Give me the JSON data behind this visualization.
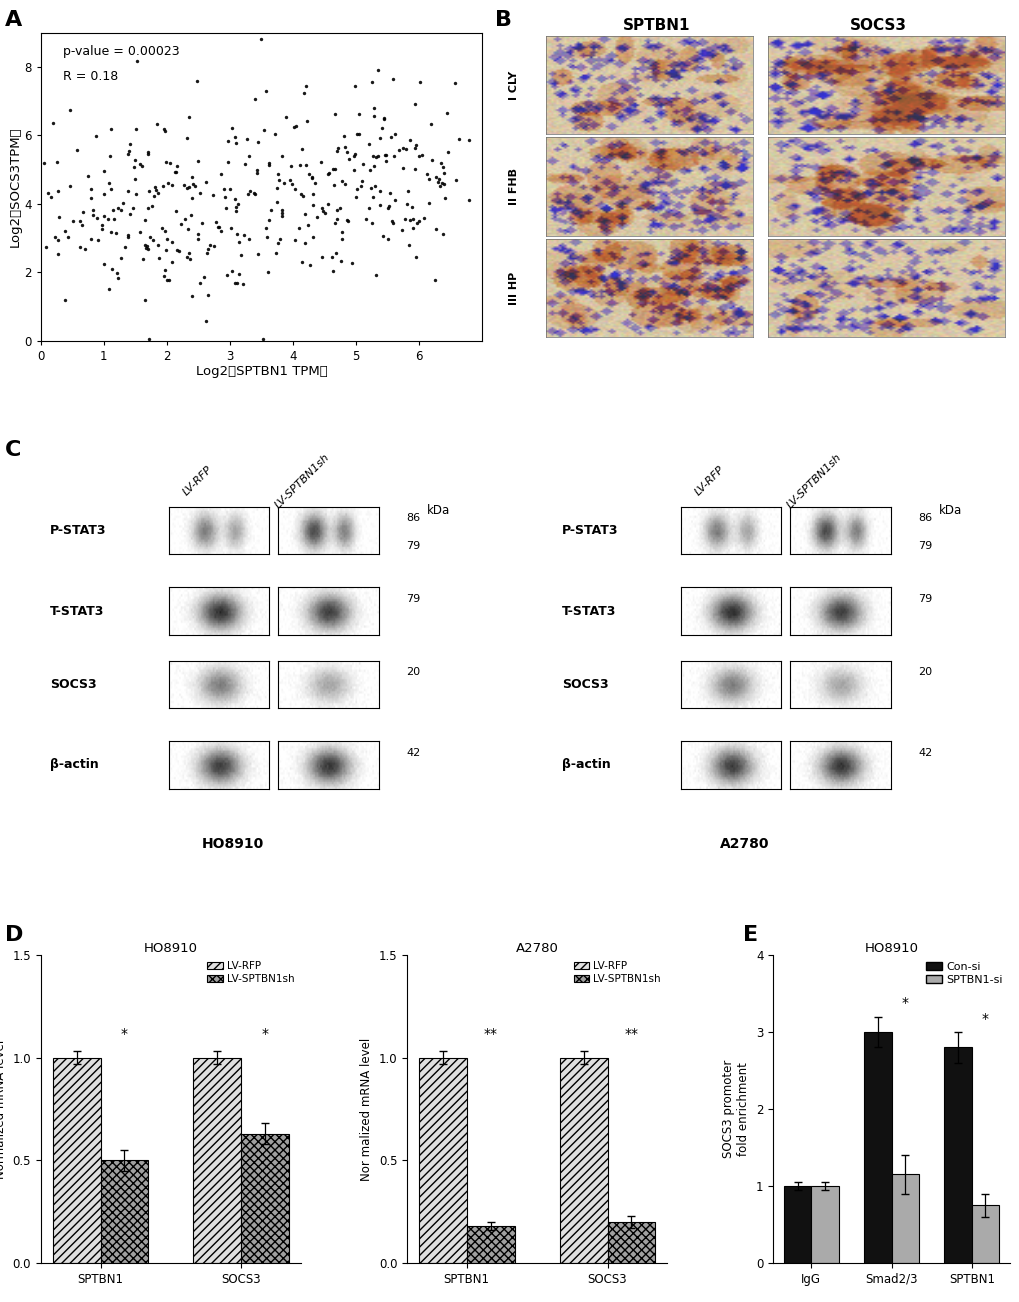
{
  "panel_A": {
    "pvalue_text": "p-value = 0.00023",
    "R_text": "R = 0.18",
    "xlabel": "Log2（SPTBN1 TPM）",
    "ylabel": "Log2（SOCS3TPM）",
    "xlim": [
      0,
      7
    ],
    "ylim": [
      0,
      9
    ],
    "xticks": [
      0,
      1,
      2,
      3,
      4,
      5,
      6
    ],
    "yticks": [
      0,
      2,
      4,
      6,
      8
    ],
    "dot_color": "#000000",
    "dot_size": 6
  },
  "panel_D_HO8910": {
    "categories": [
      "SPTBN1",
      "SOCS3"
    ],
    "LV_RFP_values": [
      1.0,
      1.0
    ],
    "LV_SPTBN1sh_values": [
      0.5,
      0.63
    ],
    "LV_RFP_errors": [
      0.03,
      0.03
    ],
    "LV_SPTBN1sh_errors": [
      0.05,
      0.05
    ],
    "ylabel": "Normalized mRNA level",
    "ylim": [
      0,
      1.5
    ],
    "yticks": [
      0.0,
      0.5,
      1.0,
      1.5
    ],
    "title": "HO8910",
    "sig_labels": [
      "*",
      "*"
    ]
  },
  "panel_D_A2780": {
    "categories": [
      "SPTBN1",
      "SOCS3"
    ],
    "LV_RFP_values": [
      1.0,
      1.0
    ],
    "LV_SPTBN1sh_values": [
      0.18,
      0.2
    ],
    "LV_RFP_errors": [
      0.03,
      0.03
    ],
    "LV_SPTBN1sh_errors": [
      0.02,
      0.03
    ],
    "ylabel": "Nor malized mRNA level",
    "ylim": [
      0,
      1.5
    ],
    "yticks": [
      0.0,
      0.5,
      1.0,
      1.5
    ],
    "title": "A2780",
    "sig_labels": [
      "**",
      "**"
    ]
  },
  "panel_E": {
    "title": "HO8910",
    "categories": [
      "IgG",
      "Smad2/3",
      "SPTBN1"
    ],
    "Con_si_values": [
      1.0,
      3.0,
      2.8
    ],
    "SPTBN1_si_values": [
      1.0,
      1.15,
      0.75
    ],
    "Con_si_errors": [
      0.05,
      0.2,
      0.2
    ],
    "SPTBN1_si_errors": [
      0.05,
      0.25,
      0.15
    ],
    "ylabel": "SOCS3 promoter\nfold enrichment",
    "ylim": [
      0,
      4
    ],
    "yticks": [
      0,
      1,
      2,
      3,
      4
    ],
    "sig_labels": [
      "",
      "*",
      "*"
    ]
  },
  "background_color": "#ffffff"
}
